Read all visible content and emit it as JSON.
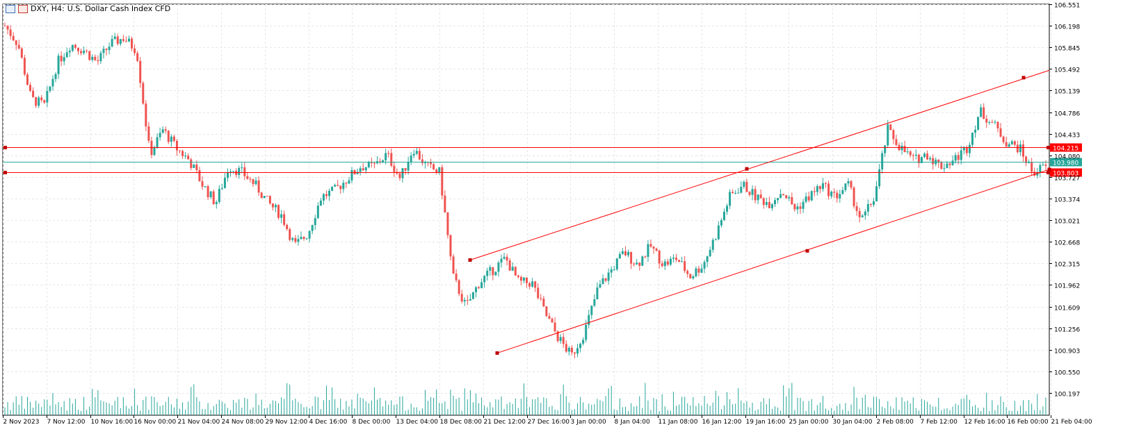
{
  "header": {
    "symbol_info": "DXY, H4:",
    "description": "U.S. Dollar Cash Index CFD",
    "icons": [
      "bars-icon",
      "candles-icon"
    ]
  },
  "chart_data": {
    "type": "candlestick",
    "symbol": "DXY",
    "timeframe": "H4",
    "y_axis_ticks": [
      "106.551",
      "106.198",
      "105.845",
      "105.492",
      "105.139",
      "104.786",
      "104.433",
      "104.080",
      "103.727",
      "103.374",
      "103.021",
      "102.668",
      "102.315",
      "101.962",
      "101.609",
      "101.256",
      "100.903",
      "100.550",
      "100.197"
    ],
    "x_axis_ticks": [
      "2 Nov 2023",
      "7 Nov 12:00",
      "10 Nov 16:00",
      "16 Nov 00:00",
      "21 Nov 04:00",
      "24 Nov 08:00",
      "29 Nov 12:00",
      "4 Dec 16:00",
      "8 Dec 00:00",
      "13 Dec 04:00",
      "18 Dec 08:00",
      "21 Dec 12:00",
      "27 Dec 16:00",
      "3 Jan 00:00",
      "8 Jan 04:00",
      "11 Jan 08:00",
      "16 Jan 12:00",
      "19 Jan 16:00",
      "25 Jan 00:00",
      "30 Jan 04:00",
      "2 Feb 08:00",
      "7 Feb 12:00",
      "12 Feb 16:00",
      "16 Feb 00:00",
      "21 Feb 04:00"
    ],
    "price_path": [
      106.2,
      105.9,
      105.0,
      104.9,
      105.6,
      105.9,
      105.8,
      105.6,
      105.9,
      106.0,
      105.8,
      104.1,
      104.5,
      104.2,
      104.0,
      103.6,
      103.3,
      103.9,
      103.8,
      103.6,
      103.3,
      103.1,
      102.6,
      102.8,
      103.4,
      103.5,
      103.7,
      103.9,
      103.9,
      104.1,
      103.7,
      104.2,
      103.9,
      103.8,
      102.1,
      101.6,
      102.0,
      102.2,
      102.4,
      102.0,
      102.0,
      101.5,
      101.1,
      100.8,
      101.2,
      101.9,
      102.2,
      102.5,
      102.3,
      102.6,
      102.3,
      102.4,
      102.1,
      102.3,
      102.8,
      103.4,
      103.6,
      103.4,
      103.3,
      103.5,
      103.2,
      103.4,
      103.6,
      103.4,
      103.6,
      103.0,
      103.4,
      104.5,
      104.2,
      104.0,
      104.1,
      103.9,
      104.0,
      104.2,
      104.8,
      104.6,
      104.3,
      104.2,
      103.8,
      103.9
    ],
    "volume_scale_max": 100.55,
    "horizontal_lines": [
      {
        "label": "104.215",
        "value": 104.215,
        "color": "#ff0000"
      },
      {
        "label": "103.803",
        "value": 103.803,
        "color": "#ff0000"
      }
    ],
    "current_price": {
      "label": "103.980",
      "value": 103.98,
      "color": "#26a69a"
    },
    "trendlines": [
      {
        "name": "channel-upper",
        "from": {
          "time": "21 Dec 00:00",
          "price": 102.37
        },
        "to": {
          "time": "20 Feb 00:00",
          "price": 105.35
        }
      },
      {
        "name": "channel-lower",
        "from": {
          "time": "22 Dec 00:00",
          "price": 100.85
        },
        "to": {
          "time": "22 Feb 00:00",
          "price": 103.85
        }
      }
    ],
    "colors": {
      "bull": "#26a69a",
      "bear": "#ef5350",
      "grid": "#e6e6e6",
      "axis": "#000000",
      "line_red": "#ff0000"
    },
    "grid": true
  }
}
